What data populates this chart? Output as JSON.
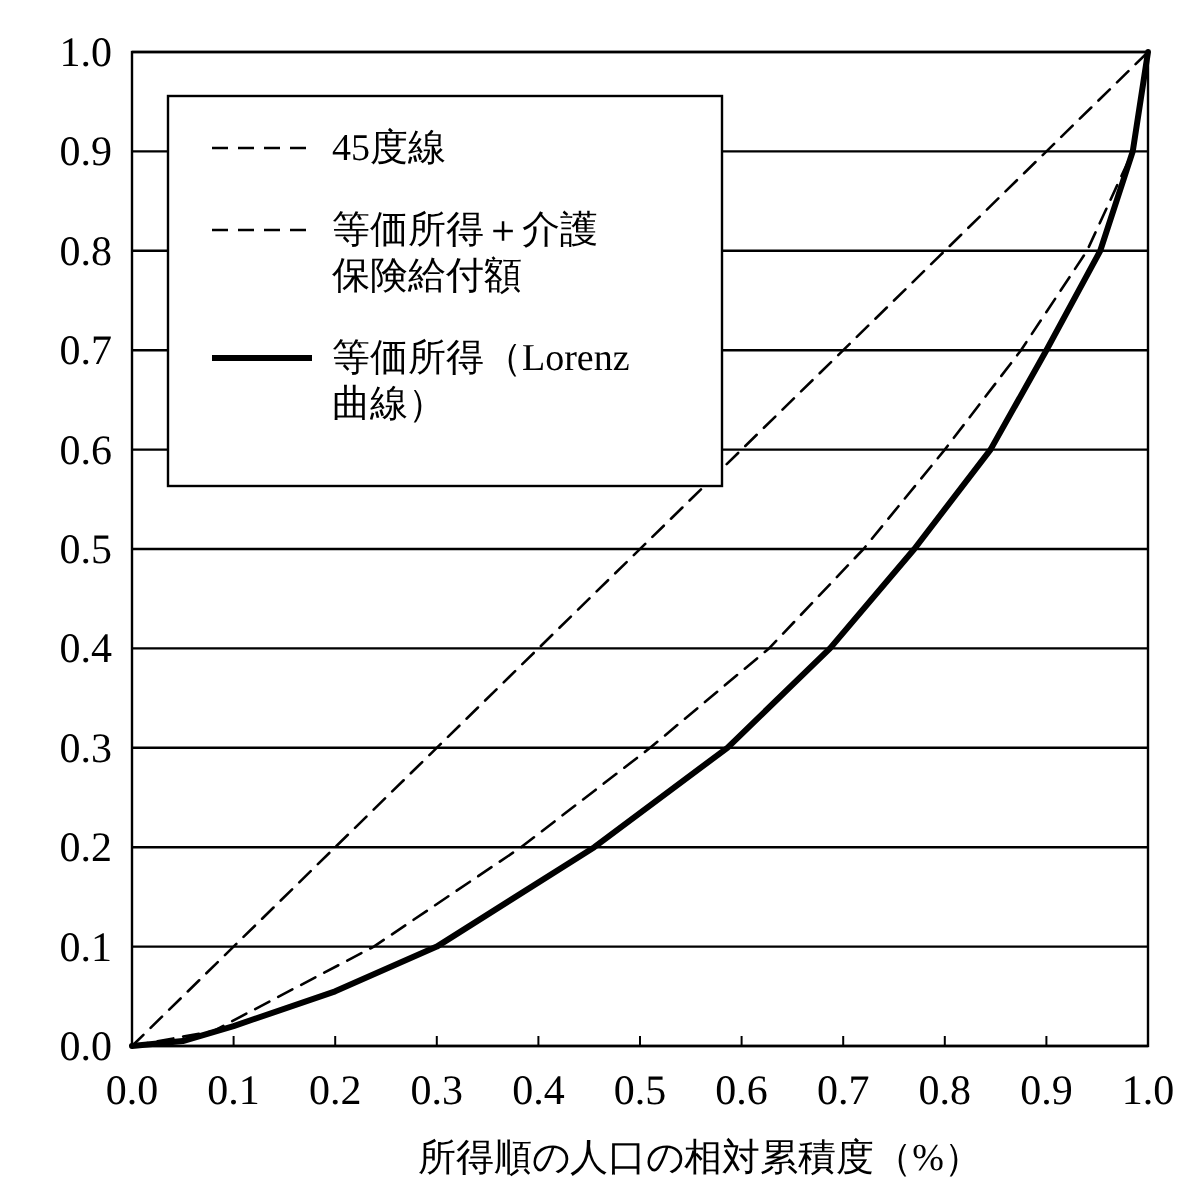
{
  "chart_data": {
    "type": "line",
    "xlabel": "所得順の人口の相対累積度（%）",
    "xlim": [
      0,
      1
    ],
    "ylim": [
      0,
      1
    ],
    "xticks": [
      {
        "value": 0,
        "label": "0.0"
      },
      0.1,
      0.2,
      0.3,
      0.4,
      0.5,
      0.6,
      0.7,
      0.8,
      0.9,
      {
        "value": 1,
        "label": "1.0"
      }
    ],
    "yticks": [
      {
        "value": 0,
        "label": "0.0"
      },
      0.1,
      0.2,
      0.3,
      0.4,
      0.5,
      0.6,
      0.7,
      0.8,
      0.9,
      {
        "value": 1,
        "label": "1.0"
      }
    ],
    "grid": "y",
    "legend": "top left",
    "marker": "none",
    "series": [
      {
        "name": "45度線",
        "color": "#000000",
        "line_style": "dashed",
        "x": [
          0,
          1
        ],
        "values": [
          0,
          1
        ]
      },
      {
        "name": "等価所得＋介護保険給付額",
        "color": "#000000",
        "line_style": "dashed",
        "x": [
          0,
          0.08,
          0.238,
          0.383,
          0.51,
          0.627,
          0.72,
          0.8,
          0.875,
          0.94,
          0.985,
          1
        ],
        "values": [
          0,
          0.015,
          0.1,
          0.2,
          0.3,
          0.4,
          0.5,
          0.6,
          0.7,
          0.8,
          0.9,
          1
        ]
      },
      {
        "name": "等価所得（Lorenz 曲線）",
        "color": "#000000",
        "line_style": "solid",
        "x": [
          0,
          0.05,
          0.1,
          0.2,
          0.3,
          0.455,
          0.586,
          0.687,
          0.77,
          0.845,
          0.9,
          0.953,
          0.985,
          1
        ],
        "values": [
          0,
          0.005,
          0.02,
          0.055,
          0.1,
          0.2,
          0.3,
          0.4,
          0.5,
          0.6,
          0.7,
          0.8,
          0.9,
          1
        ]
      }
    ]
  }
}
